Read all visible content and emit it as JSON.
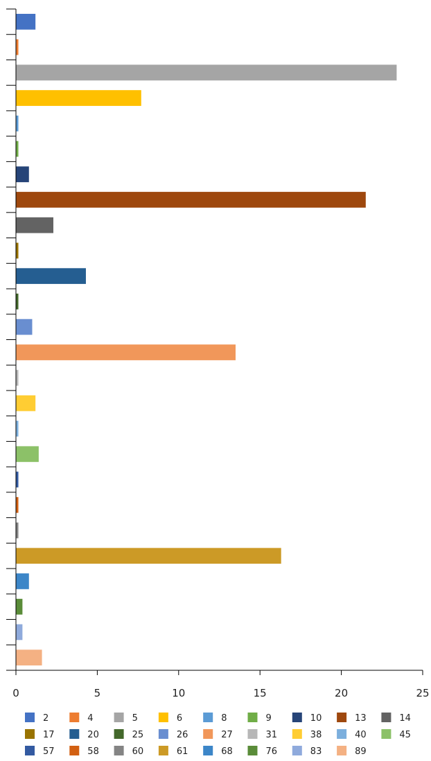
{
  "chart_data": {
    "type": "bar",
    "orientation": "horizontal",
    "title": "",
    "xlabel": "",
    "ylabel": "",
    "xlim": [
      0,
      25
    ],
    "x_ticks": [
      0,
      5,
      10,
      15,
      20,
      25
    ],
    "grid": false,
    "legend_position": "bottom",
    "series": [
      {
        "name": "2",
        "value": 1.2,
        "color": "#4472c4"
      },
      {
        "name": "4",
        "value": 0.15,
        "color": "#ed7d31"
      },
      {
        "name": "5",
        "value": 23.4,
        "color": "#a5a5a5"
      },
      {
        "name": "6",
        "value": 7.7,
        "color": "#ffc000"
      },
      {
        "name": "8",
        "value": 0.15,
        "color": "#5b9bd5"
      },
      {
        "name": "9",
        "value": 0.15,
        "color": "#70ad47"
      },
      {
        "name": "10",
        "value": 0.8,
        "color": "#264478"
      },
      {
        "name": "13",
        "value": 21.5,
        "color": "#9e480e"
      },
      {
        "name": "14",
        "value": 2.3,
        "color": "#636363"
      },
      {
        "name": "17",
        "value": 0.15,
        "color": "#997300"
      },
      {
        "name": "20",
        "value": 4.3,
        "color": "#255e91"
      },
      {
        "name": "25",
        "value": 0.15,
        "color": "#43682b"
      },
      {
        "name": "26",
        "value": 1.0,
        "color": "#698ed0"
      },
      {
        "name": "27",
        "value": 13.5,
        "color": "#f1975a"
      },
      {
        "name": "31",
        "value": 0.15,
        "color": "#b7b7b7"
      },
      {
        "name": "38",
        "value": 1.2,
        "color": "#ffcd33"
      },
      {
        "name": "40",
        "value": 0.15,
        "color": "#7cafdd"
      },
      {
        "name": "45",
        "value": 1.4,
        "color": "#8cc168"
      },
      {
        "name": "57",
        "value": 0.15,
        "color": "#335aa1"
      },
      {
        "name": "58",
        "value": 0.15,
        "color": "#d26012"
      },
      {
        "name": "60",
        "value": 0.15,
        "color": "#848484"
      },
      {
        "name": "61",
        "value": 16.3,
        "color": "#cc9a26"
      },
      {
        "name": "68",
        "value": 0.8,
        "color": "#3c86c8"
      },
      {
        "name": "76",
        "value": 0.4,
        "color": "#5a8c39"
      },
      {
        "name": "83",
        "value": 0.4,
        "color": "#8faadc"
      },
      {
        "name": "89",
        "value": 1.6,
        "color": "#f4b183"
      }
    ]
  }
}
